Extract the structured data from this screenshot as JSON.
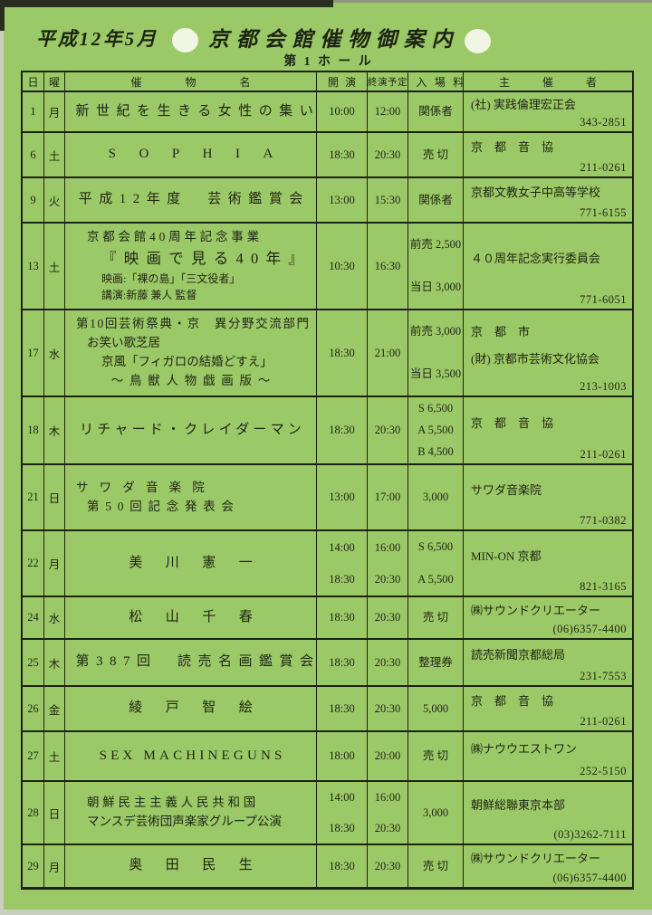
{
  "colors": {
    "paper_green": "#9cc967",
    "ink": "#1d2414",
    "grid_line": "#1c2211",
    "punch_hole": "#f1f5e3"
  },
  "header": {
    "date_label": "平成12年5月",
    "title": "京都会館催物御案内",
    "hall_label": "第1ホール"
  },
  "table": {
    "headers": {
      "day": "日",
      "weekday": "曜",
      "event": "催物名",
      "start": "開演",
      "end": "終演予定",
      "fee": "入場料",
      "organizer": "主催者"
    },
    "rows": [
      {
        "day": "1",
        "weekday": "月",
        "event_lines": [
          "新世紀を生きる女性の集い"
        ],
        "start": [
          "10:00"
        ],
        "end": [
          "12:00"
        ],
        "fee_lines": [
          "関係者"
        ],
        "organizer_lines": [
          "(社) 実践倫理宏正会"
        ],
        "phone": "343-2851"
      },
      {
        "day": "6",
        "weekday": "土",
        "event_lines": [
          "SOPHIA"
        ],
        "start": [
          "18:30"
        ],
        "end": [
          "20:30"
        ],
        "fee_lines": [
          "売 切"
        ],
        "organizer_lines": [
          "京　都　音　協"
        ],
        "phone": "211-0261"
      },
      {
        "day": "9",
        "weekday": "火",
        "event_lines": [
          "平成12年度　芸術鑑賞会"
        ],
        "start": [
          "13:00"
        ],
        "end": [
          "15:30"
        ],
        "fee_lines": [
          "関係者"
        ],
        "organizer_lines": [
          "京都文教女子中高等学校"
        ],
        "phone": "771-6155"
      },
      {
        "day": "13",
        "weekday": "土",
        "event_lines": [
          "京都会館40周年記念事業",
          "『映画で見る40年』",
          "映画:「裸の島」「三文役者」",
          "講演:新藤 兼人 監督"
        ],
        "start": [
          "10:30"
        ],
        "end": [
          "16:30"
        ],
        "fee_lines": [
          "前売 2,500",
          "当日 3,000"
        ],
        "organizer_lines": [
          "４０周年記念実行委員会"
        ],
        "phone": "771-6051"
      },
      {
        "day": "17",
        "weekday": "水",
        "event_lines": [
          "第10回芸術祭典・京　異分野交流部門",
          "お笑い歌芝居",
          "京風「フィガロの結婚どすえ」",
          "～鳥獣人物戯画版～"
        ],
        "start": [
          "18:30"
        ],
        "end": [
          "21:00"
        ],
        "fee_lines": [
          "前売 3,000",
          "当日 3,500"
        ],
        "organizer_lines": [
          "京　都　市",
          "(財) 京都市芸術文化協会"
        ],
        "phone": "213-1003"
      },
      {
        "day": "18",
        "weekday": "木",
        "event_lines": [
          "リチャード・クレイダーマン"
        ],
        "start": [
          "18:30"
        ],
        "end": [
          "20:30"
        ],
        "fee_lines": [
          "S 6,500",
          "A 5,500",
          "B 4,500"
        ],
        "organizer_lines": [
          "京　都　音　協"
        ],
        "phone": "211-0261"
      },
      {
        "day": "21",
        "weekday": "日",
        "event_lines": [
          "サワダ音楽院",
          "第50回記念発表会"
        ],
        "start": [
          "13:00"
        ],
        "end": [
          "17:00"
        ],
        "fee_lines": [
          "3,000"
        ],
        "organizer_lines": [
          "サワダ音楽院"
        ],
        "phone": "771-0382"
      },
      {
        "day": "22",
        "weekday": "月",
        "event_lines": [
          "美川憲一"
        ],
        "start": [
          "14:00",
          "18:30"
        ],
        "end": [
          "16:00",
          "20:30"
        ],
        "fee_lines": [
          "S 6,500",
          "A 5,500"
        ],
        "organizer_lines": [
          "MIN-ON 京都"
        ],
        "phone": "821-3165"
      },
      {
        "day": "24",
        "weekday": "水",
        "event_lines": [
          "松山千春"
        ],
        "start": [
          "18:30"
        ],
        "end": [
          "20:30"
        ],
        "fee_lines": [
          "売 切"
        ],
        "organizer_lines": [
          "㈱サウンドクリエーター"
        ],
        "phone": "(06)6357-4400"
      },
      {
        "day": "25",
        "weekday": "木",
        "event_lines": [
          "第387回　読売名画鑑賞会"
        ],
        "start": [
          "18:30"
        ],
        "end": [
          "20:30"
        ],
        "fee_lines": [
          "整理券"
        ],
        "organizer_lines": [
          "読売新聞京都総局"
        ],
        "phone": "231-7553"
      },
      {
        "day": "26",
        "weekday": "金",
        "event_lines": [
          "綾戸智絵"
        ],
        "start": [
          "18:30"
        ],
        "end": [
          "20:30"
        ],
        "fee_lines": [
          "5,000"
        ],
        "organizer_lines": [
          "京　都　音　協"
        ],
        "phone": "211-0261"
      },
      {
        "day": "27",
        "weekday": "土",
        "event_lines": [
          "SEX MACHINEGUNS"
        ],
        "start": [
          "18:00"
        ],
        "end": [
          "20:00"
        ],
        "fee_lines": [
          "売 切"
        ],
        "organizer_lines": [
          "㈱ナウウエストワン"
        ],
        "phone": "252-5150"
      },
      {
        "day": "28",
        "weekday": "日",
        "event_lines": [
          "朝鮮民主主義人民共和国",
          "マンスデ芸術団声楽家グループ公演"
        ],
        "start": [
          "14:00",
          "18:30"
        ],
        "end": [
          "16:00",
          "20:30"
        ],
        "fee_lines": [
          "3,000"
        ],
        "organizer_lines": [
          "朝鮮総聯東京本部"
        ],
        "phone": "(03)3262-7111"
      },
      {
        "day": "29",
        "weekday": "月",
        "event_lines": [
          "奥田民生"
        ],
        "start": [
          "18:30"
        ],
        "end": [
          "20:30"
        ],
        "fee_lines": [
          "売 切"
        ],
        "organizer_lines": [
          "㈱サウンドクリエーター"
        ],
        "phone": "(06)6357-4400"
      }
    ]
  }
}
